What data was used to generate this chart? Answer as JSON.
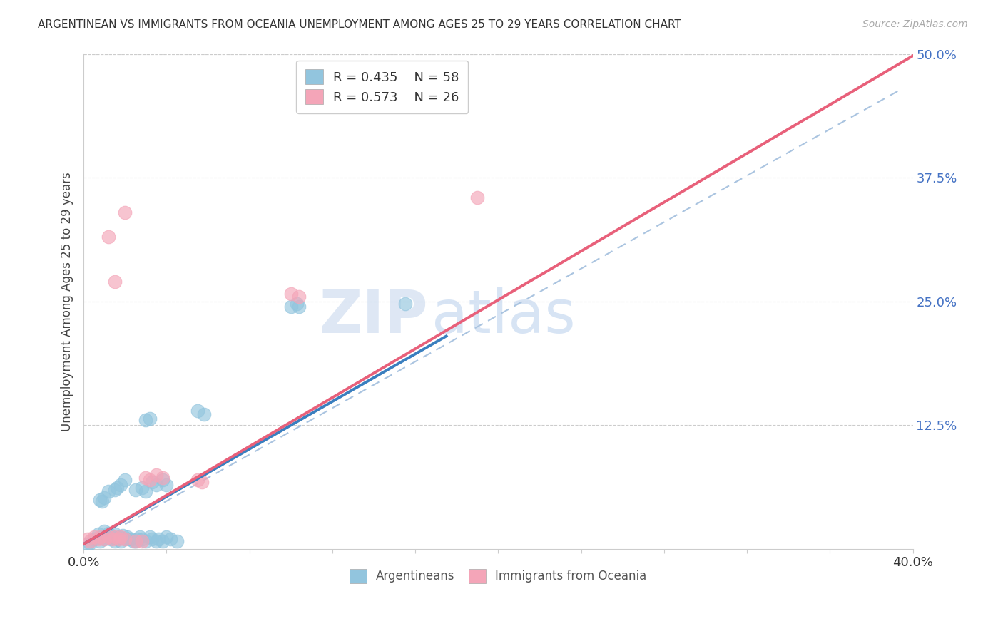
{
  "title": "ARGENTINEAN VS IMMIGRANTS FROM OCEANIA UNEMPLOYMENT AMONG AGES 25 TO 29 YEARS CORRELATION CHART",
  "source": "Source: ZipAtlas.com",
  "ylabel": "Unemployment Among Ages 25 to 29 years",
  "xlim": [
    0,
    0.4
  ],
  "ylim": [
    0,
    0.5
  ],
  "yticks": [
    0.0,
    0.125,
    0.25,
    0.375,
    0.5
  ],
  "ytick_labels": [
    "",
    "12.5%",
    "25.0%",
    "37.5%",
    "50.0%"
  ],
  "watermark_zip": "ZIP",
  "watermark_atlas": "atlas",
  "blue_color": "#92c5de",
  "pink_color": "#f4a5b8",
  "blue_line_color": "#3a7fbf",
  "pink_line_color": "#e8607a",
  "ref_line_color": "#aac4e0",
  "blue_scatter": [
    [
      0.005,
      0.01
    ],
    [
      0.007,
      0.015
    ],
    [
      0.008,
      0.008
    ],
    [
      0.009,
      0.012
    ],
    [
      0.01,
      0.01
    ],
    [
      0.01,
      0.018
    ],
    [
      0.011,
      0.014
    ],
    [
      0.012,
      0.016
    ],
    [
      0.013,
      0.01
    ],
    [
      0.014,
      0.012
    ],
    [
      0.015,
      0.008
    ],
    [
      0.015,
      0.015
    ],
    [
      0.016,
      0.01
    ],
    [
      0.017,
      0.012
    ],
    [
      0.018,
      0.008
    ],
    [
      0.019,
      0.014
    ],
    [
      0.02,
      0.01
    ],
    [
      0.021,
      0.012
    ],
    [
      0.022,
      0.01
    ],
    [
      0.023,
      0.01
    ],
    [
      0.024,
      0.008
    ],
    [
      0.025,
      0.008
    ],
    [
      0.026,
      0.01
    ],
    [
      0.027,
      0.012
    ],
    [
      0.028,
      0.01
    ],
    [
      0.03,
      0.008
    ],
    [
      0.032,
      0.012
    ],
    [
      0.033,
      0.01
    ],
    [
      0.035,
      0.008
    ],
    [
      0.036,
      0.01
    ],
    [
      0.038,
      0.008
    ],
    [
      0.04,
      0.012
    ],
    [
      0.042,
      0.01
    ],
    [
      0.045,
      0.008
    ],
    [
      0.008,
      0.05
    ],
    [
      0.009,
      0.048
    ],
    [
      0.01,
      0.052
    ],
    [
      0.012,
      0.058
    ],
    [
      0.015,
      0.06
    ],
    [
      0.016,
      0.062
    ],
    [
      0.018,
      0.065
    ],
    [
      0.02,
      0.07
    ],
    [
      0.025,
      0.06
    ],
    [
      0.028,
      0.062
    ],
    [
      0.03,
      0.058
    ],
    [
      0.03,
      0.13
    ],
    [
      0.032,
      0.132
    ],
    [
      0.055,
      0.14
    ],
    [
      0.058,
      0.136
    ],
    [
      0.1,
      0.245
    ],
    [
      0.103,
      0.248
    ],
    [
      0.104,
      0.245
    ],
    [
      0.155,
      0.248
    ],
    [
      0.033,
      0.068
    ],
    [
      0.035,
      0.065
    ],
    [
      0.038,
      0.07
    ],
    [
      0.04,
      0.065
    ],
    [
      0.002,
      0.005
    ],
    [
      0.003,
      0.006
    ]
  ],
  "pink_scatter": [
    [
      0.002,
      0.01
    ],
    [
      0.003,
      0.008
    ],
    [
      0.005,
      0.012
    ],
    [
      0.007,
      0.01
    ],
    [
      0.008,
      0.012
    ],
    [
      0.01,
      0.01
    ],
    [
      0.012,
      0.012
    ],
    [
      0.014,
      0.01
    ],
    [
      0.015,
      0.012
    ],
    [
      0.017,
      0.01
    ],
    [
      0.018,
      0.012
    ],
    [
      0.02,
      0.01
    ],
    [
      0.025,
      0.008
    ],
    [
      0.028,
      0.008
    ],
    [
      0.03,
      0.072
    ],
    [
      0.032,
      0.07
    ],
    [
      0.035,
      0.075
    ],
    [
      0.038,
      0.072
    ],
    [
      0.055,
      0.07
    ],
    [
      0.057,
      0.068
    ],
    [
      0.1,
      0.258
    ],
    [
      0.104,
      0.255
    ],
    [
      0.015,
      0.27
    ],
    [
      0.012,
      0.315
    ],
    [
      0.02,
      0.34
    ],
    [
      0.19,
      0.355
    ]
  ],
  "blue_line_x": [
    0.0,
    0.175
  ],
  "blue_line_y": [
    0.005,
    0.215
  ],
  "pink_line_x": [
    0.0,
    0.4
  ],
  "pink_line_y": [
    0.005,
    0.498
  ],
  "ref_line_x": [
    0.02,
    0.395
  ],
  "ref_line_y": [
    0.025,
    0.465
  ]
}
